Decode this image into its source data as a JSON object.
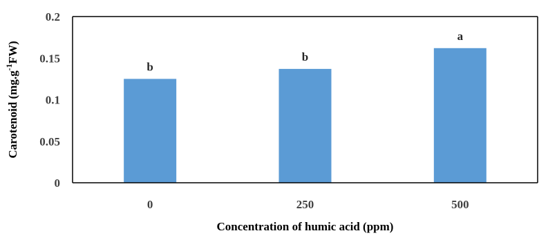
{
  "chart_data": {
    "type": "bar",
    "categories": [
      "0",
      "250",
      "500"
    ],
    "values": [
      0.125,
      0.137,
      0.162
    ],
    "data_labels": [
      "b",
      "b",
      "a"
    ],
    "xlabel": "Concentration  of humic acid (ppm)",
    "ylabel": {
      "part1": "Carotenoid  (mg.g",
      "superscript": "-1",
      "part2": "FW)"
    },
    "ylim": [
      0,
      0.2
    ],
    "yticks": [
      0,
      0.05,
      0.1,
      0.15,
      0.2
    ],
    "ytick_labels": [
      "0",
      "0.05",
      "0.1",
      "0.15",
      "0.2"
    ],
    "grid": false,
    "legend": "none",
    "bar_color": "#5B9BD5",
    "axis_color": "#000000"
  }
}
